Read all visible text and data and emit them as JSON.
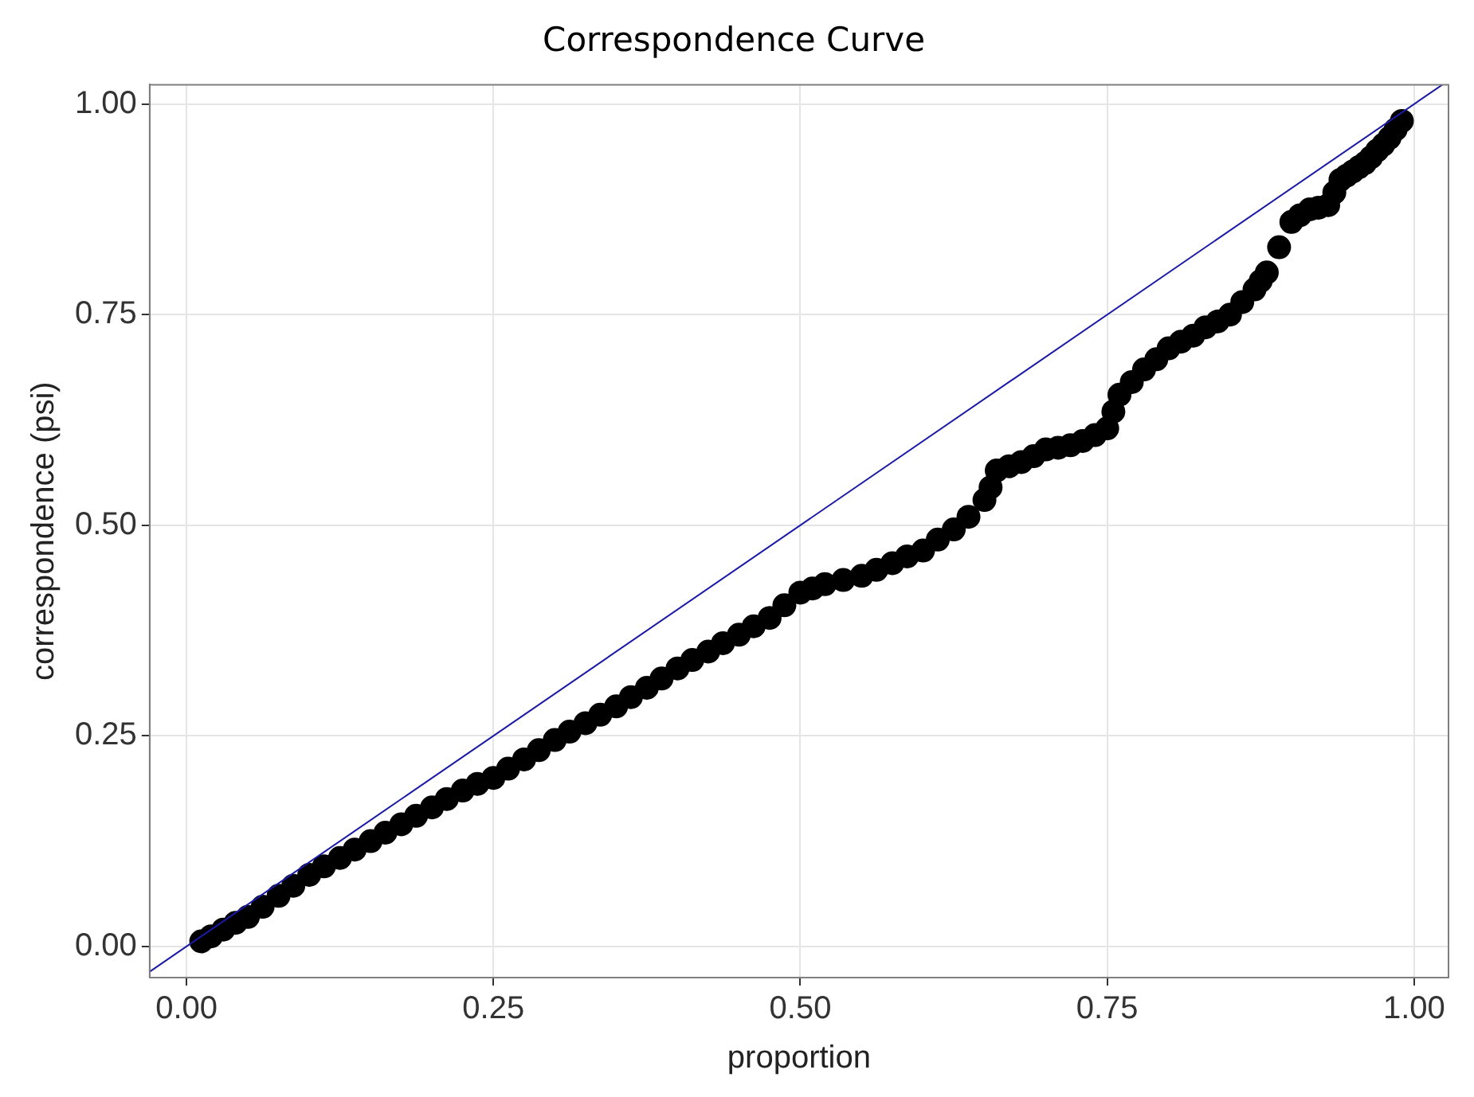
{
  "chart_data": {
    "type": "scatter",
    "title": "Correspondence Curve",
    "xlabel": "proportion",
    "ylabel": "correspondence (psi)",
    "xlim": [
      -0.03,
      1.028
    ],
    "ylim": [
      -0.037,
      1.023
    ],
    "xticks": [
      {
        "value": 0,
        "label": "0.00"
      },
      {
        "value": 0.25,
        "label": "0.25"
      },
      {
        "value": 0.5,
        "label": "0.50"
      },
      {
        "value": 0.75,
        "label": "0.75"
      },
      {
        "value": 1,
        "label": "1.00"
      }
    ],
    "yticks": [
      {
        "value": 0,
        "label": "0.00"
      },
      {
        "value": 0.25,
        "label": "0.25"
      },
      {
        "value": 0.5,
        "label": "0.50"
      },
      {
        "value": 0.75,
        "label": "0.75"
      },
      {
        "value": 1,
        "label": "1.00"
      }
    ],
    "grid": true,
    "legend": false,
    "series": [
      {
        "marker": "circle",
        "color": "#000000",
        "x": [
          0.012,
          0.02,
          0.03,
          0.04,
          0.05,
          0.062,
          0.075,
          0.087,
          0.1,
          0.112,
          0.125,
          0.137,
          0.15,
          0.162,
          0.175,
          0.187,
          0.2,
          0.212,
          0.225,
          0.237,
          0.25,
          0.262,
          0.275,
          0.287,
          0.3,
          0.312,
          0.325,
          0.337,
          0.35,
          0.362,
          0.375,
          0.387,
          0.4,
          0.412,
          0.425,
          0.437,
          0.45,
          0.462,
          0.475,
          0.487,
          0.5,
          0.51,
          0.52,
          0.535,
          0.55,
          0.562,
          0.575,
          0.587,
          0.6,
          0.612,
          0.625,
          0.637,
          0.65,
          0.655,
          0.66,
          0.67,
          0.68,
          0.69,
          0.7,
          0.71,
          0.72,
          0.73,
          0.74,
          0.75,
          0.755,
          0.76,
          0.77,
          0.78,
          0.79,
          0.8,
          0.81,
          0.82,
          0.83,
          0.84,
          0.85,
          0.86,
          0.87,
          0.875,
          0.88,
          0.89,
          0.9,
          0.907,
          0.915,
          0.922,
          0.93,
          0.935,
          0.94,
          0.945,
          0.95,
          0.955,
          0.96,
          0.965,
          0.97,
          0.975,
          0.98,
          0.985,
          0.99
        ],
        "values": [
          0.006,
          0.012,
          0.02,
          0.028,
          0.035,
          0.047,
          0.06,
          0.072,
          0.085,
          0.095,
          0.105,
          0.115,
          0.125,
          0.135,
          0.145,
          0.155,
          0.165,
          0.175,
          0.185,
          0.193,
          0.2,
          0.211,
          0.222,
          0.233,
          0.245,
          0.255,
          0.265,
          0.275,
          0.285,
          0.296,
          0.307,
          0.318,
          0.33,
          0.34,
          0.35,
          0.36,
          0.37,
          0.38,
          0.39,
          0.405,
          0.42,
          0.425,
          0.43,
          0.435,
          0.44,
          0.447,
          0.455,
          0.463,
          0.47,
          0.483,
          0.495,
          0.51,
          0.53,
          0.545,
          0.565,
          0.57,
          0.575,
          0.582,
          0.59,
          0.592,
          0.595,
          0.6,
          0.607,
          0.615,
          0.635,
          0.655,
          0.67,
          0.685,
          0.697,
          0.71,
          0.718,
          0.725,
          0.735,
          0.742,
          0.75,
          0.765,
          0.78,
          0.79,
          0.8,
          0.83,
          0.86,
          0.868,
          0.875,
          0.877,
          0.88,
          0.895,
          0.91,
          0.915,
          0.92,
          0.925,
          0.93,
          0.937,
          0.945,
          0.952,
          0.96,
          0.97,
          0.98
        ]
      },
      {
        "type": "line",
        "color": "#1a1aa6",
        "x": [
          -0.03,
          1.023
        ],
        "values": [
          -0.03,
          1.023
        ]
      }
    ]
  }
}
